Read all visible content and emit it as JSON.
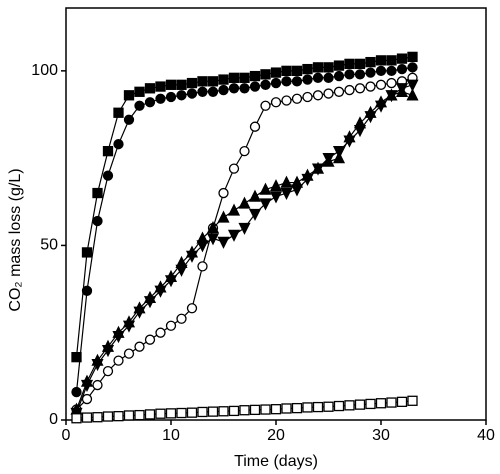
{
  "chart_data": {
    "type": "line",
    "x_label": "Time (days)",
    "y_label": "CO₂ mass loss (g/L)",
    "x": [
      1,
      2,
      3,
      4,
      5,
      6,
      7,
      8,
      9,
      10,
      11,
      12,
      13,
      14,
      15,
      16,
      17,
      18,
      19,
      20,
      21,
      22,
      23,
      24,
      25,
      26,
      27,
      28,
      29,
      30,
      31,
      32,
      33
    ],
    "xlim": [
      0,
      40
    ],
    "xticks": [
      0,
      10,
      20,
      30,
      40
    ],
    "ylim": [
      0,
      118
    ],
    "yticks": [
      0,
      50,
      100
    ],
    "series": [
      {
        "marker": "square",
        "filled": true,
        "color": "#000000",
        "values": [
          18,
          48,
          65,
          77,
          88,
          93,
          94,
          95,
          95.5,
          96,
          96,
          96.5,
          97,
          97,
          97.5,
          98,
          98,
          98.5,
          99,
          99.5,
          100,
          100,
          100.5,
          101,
          101,
          101.5,
          102,
          102,
          102.5,
          103,
          103,
          103.5,
          104
        ]
      },
      {
        "marker": "circle",
        "filled": true,
        "color": "#000000",
        "values": [
          8,
          37,
          57,
          70,
          79,
          86,
          90,
          91,
          92,
          92.5,
          93,
          93.5,
          94,
          94,
          94.5,
          95,
          95,
          95.5,
          96,
          96.5,
          97,
          97,
          97.5,
          98,
          98,
          98.5,
          99,
          99,
          99.5,
          100,
          100,
          100.5,
          101
        ]
      },
      {
        "marker": "circle",
        "filled": false,
        "color": "#000000",
        "values": [
          3,
          6,
          10,
          14,
          17,
          19,
          21,
          23,
          25,
          27,
          29,
          32,
          44,
          55,
          65,
          72,
          77,
          84,
          90,
          91,
          91.5,
          92,
          92.5,
          93,
          93.5,
          94,
          94.5,
          95,
          95.5,
          96,
          96.5,
          97,
          98
        ]
      },
      {
        "marker": "triangle-up",
        "filled": true,
        "color": "#000000",
        "values": [
          3,
          11,
          17,
          21,
          25,
          28,
          32,
          35,
          38,
          41,
          45,
          48,
          52,
          55,
          58,
          60,
          62,
          64,
          66,
          67,
          68,
          68,
          70,
          72,
          74,
          75,
          81,
          85,
          88,
          91,
          93,
          94,
          93
        ]
      },
      {
        "marker": "triangle-down",
        "filled": true,
        "color": "#000000",
        "values": [
          2,
          10,
          16,
          20,
          24,
          27,
          31,
          34,
          37,
          40,
          43,
          47,
          50,
          52,
          51,
          53,
          55,
          59,
          62,
          64,
          65,
          66,
          69,
          72,
          75,
          77,
          80,
          83,
          87,
          90,
          93,
          95,
          96
        ]
      },
      {
        "marker": "square",
        "filled": false,
        "color": "#000000",
        "values": [
          0.5,
          0.7,
          0.8,
          1,
          1.1,
          1.3,
          1.4,
          1.6,
          1.8,
          1.9,
          2,
          2.1,
          2.3,
          2.4,
          2.5,
          2.6,
          2.8,
          2.9,
          3,
          3.1,
          3.3,
          3.4,
          3.6,
          3.7,
          3.8,
          4,
          4.2,
          4.4,
          4.6,
          4.8,
          5,
          5.2,
          5.5
        ]
      }
    ]
  }
}
